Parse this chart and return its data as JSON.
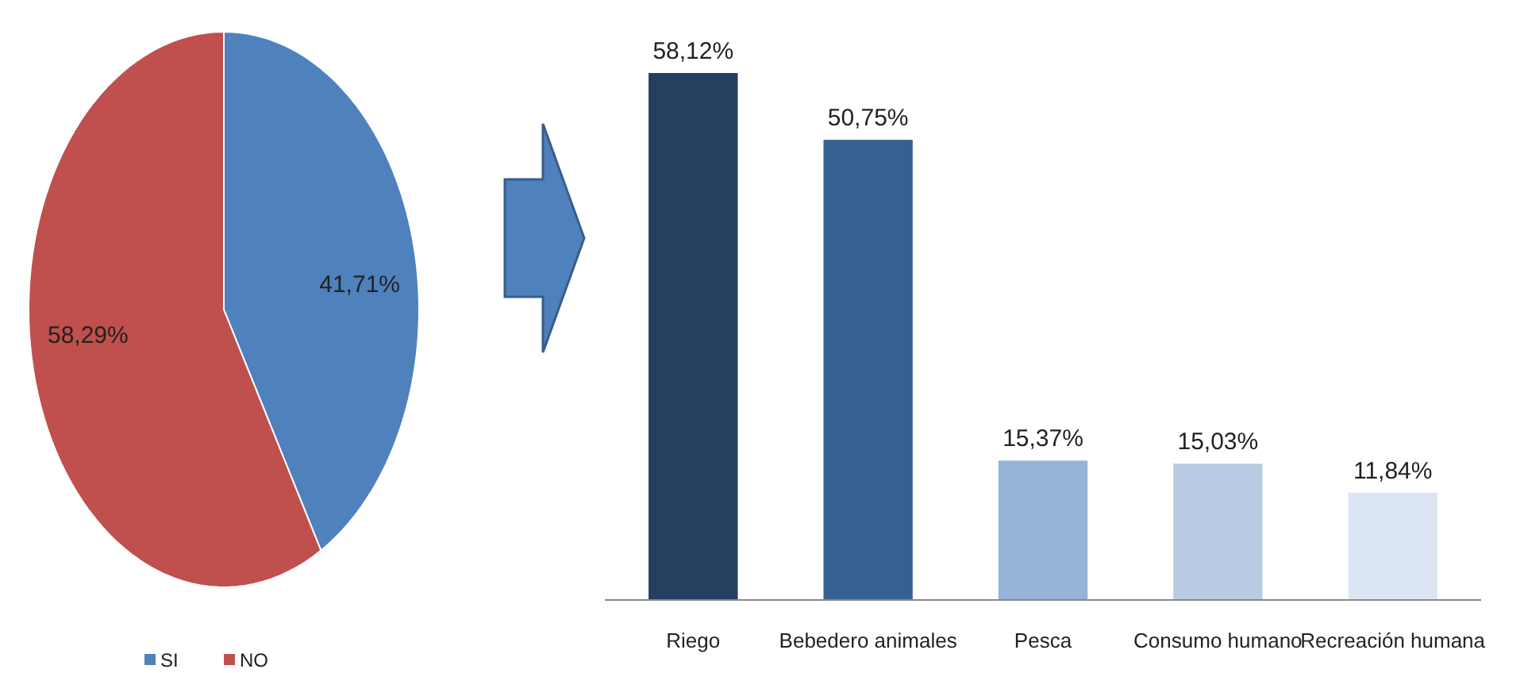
{
  "chart_data": [
    {
      "type": "pie",
      "categories": [
        "SI",
        "NO"
      ],
      "values": [
        41.71,
        58.29
      ],
      "colors": [
        "#4f81bd",
        "#c0504d"
      ],
      "value_labels": [
        "41,71%",
        "58,29%"
      ],
      "legend": "bottom"
    },
    {
      "type": "bar",
      "categories": [
        "Riego",
        "Bebedero animales",
        "Pesca",
        "Consumo humano",
        "Recreación humana"
      ],
      "values": [
        58.12,
        50.75,
        15.37,
        15.03,
        11.84
      ],
      "colors": [
        "#243f60",
        "#366092",
        "#95b3d7",
        "#b8cce4",
        "#dce6f2"
      ],
      "value_labels": [
        "58,12%",
        "50,75%",
        "15,37%",
        "15,03%",
        "11,84%"
      ]
    }
  ]
}
